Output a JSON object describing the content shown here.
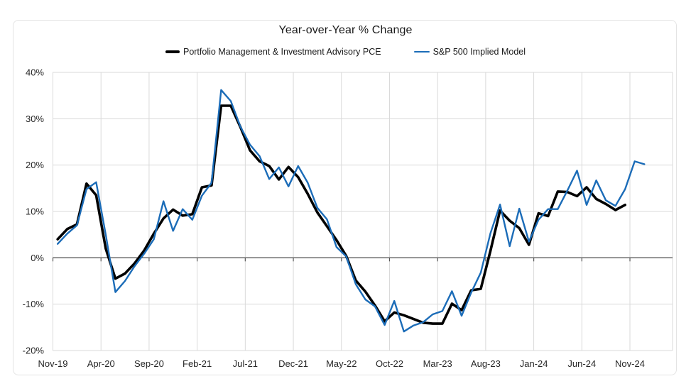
{
  "title": "Year-over-Year % Change",
  "legend": {
    "items": [
      {
        "label": "Portfolio Management & Investment Advisory PCE",
        "color": "#000000"
      },
      {
        "label": "S&P 500 Implied Model",
        "color": "#1b6cb8"
      }
    ]
  },
  "chart_data": {
    "type": "line",
    "title": "Year-over-Year % Change",
    "x_unit": "month",
    "x_start_month": "Nov-19",
    "x_tick_labels": [
      "Nov-19",
      "Apr-20",
      "Sep-20",
      "Feb-21",
      "Jul-21",
      "Dec-21",
      "May-22",
      "Oct-22",
      "Mar-23",
      "Aug-23",
      "Jan-24",
      "Jun-24",
      "Nov-24"
    ],
    "y_tick_labels": [
      "40%",
      "30%",
      "20%",
      "10%",
      "0%",
      "-10%",
      "-20%"
    ],
    "ylim": [
      -20,
      40
    ],
    "y_grid_step_pct": 10,
    "x_grid_step_months": 5,
    "grid": true,
    "legend_position": "top",
    "style": {
      "grid_color": "#d9d9d9",
      "zero_axis_color": "#595959",
      "tick_label_color": "#262626",
      "tick_label_size": 13
    },
    "series": [
      {
        "name": "Portfolio Management & Investment Advisory PCE",
        "color": "#000000",
        "stroke_width": 3.6,
        "months": [
          "Nov-19",
          "Dec-19",
          "Jan-20",
          "Feb-20",
          "Mar-20",
          "Apr-20",
          "May-20",
          "Jun-20",
          "Jul-20",
          "Aug-20",
          "Sep-20",
          "Oct-20",
          "Nov-20",
          "Dec-20",
          "Jan-21",
          "Feb-21",
          "Mar-21",
          "Apr-21",
          "May-21",
          "Jun-21",
          "Jul-21",
          "Aug-21",
          "Sep-21",
          "Oct-21",
          "Nov-21",
          "Dec-21",
          "Jan-22",
          "Feb-22",
          "Mar-22",
          "Apr-22",
          "May-22",
          "Jun-22",
          "Jul-22",
          "Aug-22",
          "Sep-22",
          "Oct-22",
          "Nov-22",
          "Dec-22",
          "Jan-23",
          "Feb-23",
          "Mar-23",
          "Apr-23",
          "May-23",
          "Jun-23",
          "Jul-23",
          "Aug-23",
          "Sep-23",
          "Oct-23",
          "Nov-23",
          "Dec-23",
          "Jan-24",
          "Feb-24",
          "Mar-24",
          "Apr-24",
          "May-24",
          "Jun-24",
          "Jul-24",
          "Aug-24",
          "Sep-24",
          "Oct-24"
        ],
        "values_pct": [
          4.0,
          6.2,
          7.2,
          16.0,
          13.5,
          2.0,
          -4.5,
          -3.4,
          -1.2,
          1.6,
          5.2,
          8.5,
          10.4,
          9.1,
          9.4,
          15.2,
          15.6,
          32.8,
          32.8,
          28.2,
          23.2,
          20.8,
          19.8,
          16.9,
          19.6,
          17.4,
          13.8,
          9.8,
          6.8,
          3.8,
          0.4,
          -4.9,
          -7.3,
          -10.3,
          -13.7,
          -11.8,
          -12.4,
          -13.2,
          -14.0,
          -14.2,
          -14.2,
          -9.9,
          -11.3,
          -7.0,
          -6.7,
          1.5,
          10.2,
          8.0,
          6.4,
          2.8,
          9.6,
          9.0,
          14.3,
          14.2,
          13.3,
          15.2,
          12.7,
          11.6,
          10.3,
          11.4
        ]
      },
      {
        "name": "S&P 500 Implied Model",
        "color": "#1b6cb8",
        "stroke_width": 2.4,
        "months": [
          "Nov-19",
          "Dec-19",
          "Jan-20",
          "Feb-20",
          "Mar-20",
          "Apr-20",
          "May-20",
          "Jun-20",
          "Jul-20",
          "Aug-20",
          "Sep-20",
          "Oct-20",
          "Nov-20",
          "Dec-20",
          "Jan-21",
          "Feb-21",
          "Mar-21",
          "Apr-21",
          "May-21",
          "Jun-21",
          "Jul-21",
          "Aug-21",
          "Sep-21",
          "Oct-21",
          "Nov-21",
          "Dec-21",
          "Jan-22",
          "Feb-22",
          "Mar-22",
          "Apr-22",
          "May-22",
          "Jun-22",
          "Jul-22",
          "Aug-22",
          "Sep-22",
          "Oct-22",
          "Nov-22",
          "Dec-22",
          "Jan-23",
          "Feb-23",
          "Mar-23",
          "Apr-23",
          "May-23",
          "Jun-23",
          "Jul-23",
          "Aug-23",
          "Sep-23",
          "Oct-23",
          "Nov-23",
          "Dec-23",
          "Jan-24",
          "Feb-24",
          "Mar-24",
          "Apr-24",
          "May-24",
          "Jun-24",
          "Jul-24",
          "Aug-24",
          "Sep-24",
          "Oct-24",
          "Nov-24",
          "Dec-24"
        ],
        "values_pct": [
          3.0,
          5.2,
          7.0,
          14.8,
          16.3,
          5.0,
          -7.4,
          -5.0,
          -1.8,
          0.9,
          4.0,
          12.2,
          5.8,
          10.5,
          8.2,
          13.4,
          16.2,
          36.2,
          33.8,
          28.3,
          24.4,
          21.9,
          17.0,
          19.5,
          15.4,
          19.8,
          16.2,
          10.8,
          8.3,
          2.3,
          0.3,
          -5.7,
          -9.0,
          -10.5,
          -14.5,
          -9.3,
          -15.9,
          -14.6,
          -13.9,
          -12.2,
          -11.5,
          -7.2,
          -12.5,
          -7.5,
          -3.2,
          5.3,
          11.5,
          2.5,
          10.6,
          3.5,
          8.2,
          10.5,
          10.5,
          14.5,
          18.8,
          11.4,
          16.7,
          12.4,
          11.2,
          14.8,
          20.8,
          20.2
        ]
      }
    ]
  }
}
